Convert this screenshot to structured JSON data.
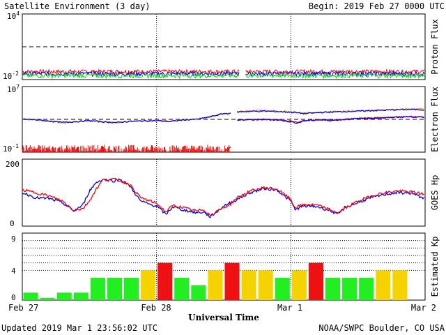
{
  "header": {
    "title": "Satellite Environment (3 day)",
    "begin": "Begin:  2019 Feb 27 0000 UTC"
  },
  "footer": {
    "updated": "Updated 2019 Mar  1 23:56:02 UTC",
    "credit": "NOAA/SWPC Boulder, CO USA"
  },
  "x_axis": {
    "label": "Universal Time",
    "ticks": [
      "Feb 27",
      "Feb 28",
      "Mar 1",
      "Mar 2"
    ]
  },
  "colors": {
    "red": "#ff0000",
    "blue": "#0000ff",
    "green": "#00e000",
    "orange": "#ffa500",
    "kp_green": "#22ee22",
    "kp_yellow": "#f5d300",
    "kp_red": "#ee1111"
  },
  "chart_data": [
    {
      "type": "line",
      "ylabel": "Proton Flux",
      "yscale": "log",
      "ylim": [
        0.01,
        10000
      ],
      "ytick_labels": [
        {
          "base": "10",
          "exp": "4"
        },
        {
          "base": "10",
          "exp": "-2"
        }
      ],
      "threshold": 10,
      "x_days": [
        0,
        3
      ],
      "gap": [
        1.62,
        1.66
      ],
      "series": [
        {
          "color": "#ff0000",
          "level": 0.055
        },
        {
          "color": "#0000ff",
          "level": 0.036
        },
        {
          "color": "#00e000",
          "level": 0.024
        }
      ]
    },
    {
      "type": "line",
      "ylabel": "Electron Flux",
      "yscale": "log",
      "ylim": [
        0.1,
        10000000
      ],
      "ytick_labels": [
        {
          "base": "10",
          "exp": "7"
        },
        {
          "base": "10",
          "exp": "-1"
        }
      ],
      "threshold": 1000,
      "gap": [
        1.56,
        1.6
      ],
      "series": [
        {
          "color": "#ffa500",
          "points": [
            [
              0,
              1100
            ],
            [
              0.1,
              900
            ],
            [
              0.2,
              650
            ],
            [
              0.3,
              350
            ],
            [
              0.38,
              480
            ],
            [
              0.5,
              700
            ],
            [
              0.6,
              520
            ],
            [
              0.7,
              380
            ],
            [
              0.8,
              600
            ],
            [
              0.9,
              650
            ],
            [
              1.0,
              720
            ],
            [
              1.1,
              560
            ],
            [
              1.2,
              900
            ],
            [
              1.3,
              1100
            ],
            [
              1.35,
              1500
            ],
            [
              1.4,
              2200
            ],
            [
              1.45,
              3500
            ],
            [
              1.5,
              5500
            ],
            [
              1.56,
              6000
            ],
            [
              1.6,
              9000
            ],
            [
              1.7,
              11000
            ],
            [
              1.8,
              12000
            ],
            [
              1.9,
              10000
            ],
            [
              2.0,
              9000
            ],
            [
              2.1,
              6000
            ],
            [
              2.2,
              7000
            ],
            [
              2.3,
              8500
            ],
            [
              2.4,
              10000
            ],
            [
              2.5,
              11000
            ],
            [
              2.6,
              12500
            ],
            [
              2.7,
              15000
            ],
            [
              2.8,
              17000
            ],
            [
              2.9,
              19000
            ],
            [
              3.0,
              17000
            ]
          ]
        },
        {
          "color": "#0000ff",
          "points": [
            [
              0,
              1050
            ],
            [
              0.1,
              880
            ],
            [
              0.2,
              600
            ],
            [
              0.3,
              420
            ],
            [
              0.38,
              500
            ],
            [
              0.5,
              680
            ],
            [
              0.6,
              500
            ],
            [
              0.7,
              400
            ],
            [
              0.8,
              560
            ],
            [
              0.9,
              640
            ],
            [
              1.0,
              680
            ],
            [
              1.1,
              540
            ],
            [
              1.2,
              850
            ],
            [
              1.3,
              1000
            ],
            [
              1.35,
              1400
            ],
            [
              1.4,
              2000
            ],
            [
              1.45,
              3200
            ],
            [
              1.5,
              5000
            ],
            [
              1.56,
              5500
            ],
            [
              1.6,
              8000
            ],
            [
              1.7,
              9500
            ],
            [
              1.8,
              10000
            ],
            [
              1.9,
              9000
            ],
            [
              2.0,
              7500
            ],
            [
              2.1,
              5000
            ],
            [
              2.2,
              6500
            ],
            [
              2.3,
              7800
            ],
            [
              2.4,
              9000
            ],
            [
              2.5,
              10000
            ],
            [
              2.6,
              11500
            ],
            [
              2.7,
              13000
            ],
            [
              2.8,
              15000
            ],
            [
              2.9,
              16000
            ],
            [
              3.0,
              15000
            ]
          ]
        },
        {
          "color": "#ff0000",
          "noisy_until": 1.55,
          "noise_range": [
            0.1,
            0.8
          ],
          "points": [
            [
              1.52,
              0.2
            ],
            [
              1.55,
              0.35
            ],
            [
              1.56,
              0.5
            ],
            [
              1.6,
              850
            ],
            [
              1.7,
              950
            ],
            [
              1.8,
              1000
            ],
            [
              1.9,
              900
            ],
            [
              2.0,
              600
            ],
            [
              2.05,
              400
            ],
            [
              2.1,
              700
            ],
            [
              2.2,
              900
            ],
            [
              2.3,
              800
            ],
            [
              2.4,
              1000
            ],
            [
              2.5,
              1300
            ],
            [
              2.6,
              1400
            ],
            [
              2.7,
              1600
            ],
            [
              2.8,
              2000
            ],
            [
              2.9,
              2300
            ],
            [
              3.0,
              1800
            ]
          ]
        },
        {
          "color": "#0000ff",
          "points": [
            [
              1.6,
              800
            ],
            [
              1.7,
              900
            ],
            [
              1.8,
              950
            ],
            [
              1.9,
              850
            ],
            [
              2.0,
              500
            ],
            [
              2.05,
              350
            ],
            [
              2.1,
              650
            ],
            [
              2.2,
              850
            ],
            [
              2.3,
              750
            ],
            [
              2.4,
              950
            ],
            [
              2.5,
              1250
            ],
            [
              2.6,
              1350
            ],
            [
              2.7,
              1500
            ],
            [
              2.8,
              1900
            ],
            [
              2.9,
              2100
            ],
            [
              3.0,
              1700
            ]
          ]
        }
      ]
    },
    {
      "type": "line",
      "ylabel": "GOES Hp",
      "ylim": [
        0,
        200
      ],
      "yticks": [
        "200",
        "0"
      ],
      "series": [
        {
          "color": "#0000ff",
          "points": [
            [
              0,
              100
            ],
            [
              0.1,
              85
            ],
            [
              0.2,
              82
            ],
            [
              0.3,
              70
            ],
            [
              0.38,
              45
            ],
            [
              0.45,
              62
            ],
            [
              0.5,
              105
            ],
            [
              0.55,
              130
            ],
            [
              0.6,
              140
            ],
            [
              0.68,
              135
            ],
            [
              0.73,
              140
            ],
            [
              0.8,
              120
            ],
            [
              0.88,
              75
            ],
            [
              0.95,
              65
            ],
            [
              1.0,
              60
            ],
            [
              1.07,
              35
            ],
            [
              1.12,
              58
            ],
            [
              1.2,
              48
            ],
            [
              1.3,
              40
            ],
            [
              1.35,
              42
            ],
            [
              1.4,
              28
            ],
            [
              1.5,
              60
            ],
            [
              1.55,
              70
            ],
            [
              1.6,
              80
            ],
            [
              1.7,
              100
            ],
            [
              1.8,
              112
            ],
            [
              1.9,
              108
            ],
            [
              1.95,
              90
            ],
            [
              2.0,
              75
            ],
            [
              2.03,
              50
            ],
            [
              2.1,
              60
            ],
            [
              2.2,
              58
            ],
            [
              2.3,
              45
            ],
            [
              2.35,
              35
            ],
            [
              2.4,
              55
            ],
            [
              2.5,
              70
            ],
            [
              2.6,
              85
            ],
            [
              2.7,
              95
            ],
            [
              2.8,
              100
            ],
            [
              2.9,
              98
            ],
            [
              3.0,
              82
            ]
          ]
        },
        {
          "color": "#ff0000",
          "points": [
            [
              0,
              108
            ],
            [
              0.1,
              100
            ],
            [
              0.2,
              90
            ],
            [
              0.3,
              75
            ],
            [
              0.38,
              48
            ],
            [
              0.45,
              52
            ],
            [
              0.5,
              75
            ],
            [
              0.55,
              110
            ],
            [
              0.6,
              138
            ],
            [
              0.68,
              140
            ],
            [
              0.73,
              135
            ],
            [
              0.8,
              125
            ],
            [
              0.88,
              85
            ],
            [
              0.95,
              75
            ],
            [
              1.0,
              68
            ],
            [
              1.07,
              42
            ],
            [
              1.12,
              62
            ],
            [
              1.2,
              55
            ],
            [
              1.3,
              45
            ],
            [
              1.35,
              50
            ],
            [
              1.4,
              32
            ],
            [
              1.5,
              55
            ],
            [
              1.55,
              65
            ],
            [
              1.6,
              85
            ],
            [
              1.7,
              105
            ],
            [
              1.8,
              115
            ],
            [
              1.9,
              110
            ],
            [
              1.95,
              95
            ],
            [
              2.0,
              80
            ],
            [
              2.03,
              55
            ],
            [
              2.1,
              65
            ],
            [
              2.2,
              62
            ],
            [
              2.3,
              48
            ],
            [
              2.35,
              38
            ],
            [
              2.4,
              52
            ],
            [
              2.5,
              75
            ],
            [
              2.6,
              90
            ],
            [
              2.7,
              100
            ],
            [
              2.8,
              105
            ],
            [
              2.9,
              102
            ],
            [
              3.0,
              95
            ]
          ]
        }
      ]
    },
    {
      "type": "bar",
      "ylabel": "Estimated Kp",
      "ylim": [
        0,
        9
      ],
      "yticks": [
        "9",
        "4",
        "0"
      ],
      "bar_hours": 3,
      "values": [
        1,
        0.3,
        1,
        1,
        3,
        3,
        3,
        4,
        5,
        3,
        2,
        4,
        5,
        4,
        4,
        3,
        4,
        5,
        3,
        3,
        3,
        4,
        4
      ],
      "levels": [
        "green",
        "green",
        "green",
        "green",
        "green",
        "green",
        "green",
        "yellow",
        "red",
        "green",
        "green",
        "yellow",
        "red",
        "yellow",
        "yellow",
        "green",
        "yellow",
        "red",
        "green",
        "green",
        "green",
        "yellow",
        "yellow"
      ]
    }
  ]
}
